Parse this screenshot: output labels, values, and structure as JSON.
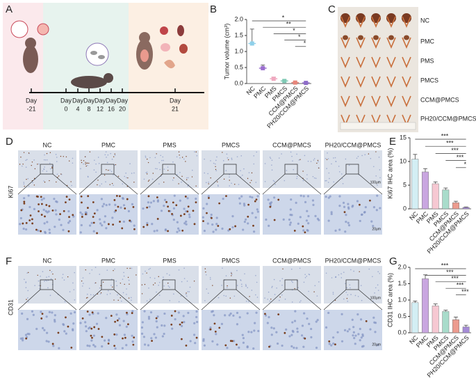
{
  "panel_labels": [
    "A",
    "B",
    "C",
    "D",
    "E",
    "F",
    "G"
  ],
  "timeline": {
    "days": [
      {
        "label": "Day",
        "num": -21
      },
      {
        "label": "Day",
        "num": 0
      },
      {
        "label": "Day",
        "num": 4
      },
      {
        "label": "Day",
        "num": 8
      },
      {
        "label": "Day",
        "num": 12
      },
      {
        "label": "Day",
        "num": 16
      },
      {
        "label": "Day",
        "num": 20
      },
      {
        "label": "Day",
        "num": 21
      }
    ]
  },
  "chart_data": [
    {
      "type": "dot",
      "ylabel": "Tumor volume (cm³)",
      "categories": [
        "NC",
        "PMC",
        "PMS",
        "PMCS",
        "CCM@PMCS",
        "PH20/CCM@PMCS"
      ],
      "values": [
        1.25,
        0.48,
        0.15,
        0.08,
        0.03,
        0.02
      ],
      "errors": [
        0.45,
        0.1,
        0.05,
        0.03,
        0.02,
        0.01
      ],
      "colors": [
        "#8fd0ea",
        "#9b6fcf",
        "#f0a9c0",
        "#7fcab5",
        "#e8857a",
        "#8e6cc9"
      ],
      "ylim": [
        0,
        2
      ],
      "yticks": [
        {
          "value": 0,
          "label": "0.0"
        },
        0.5,
        {
          "value": 1,
          "label": "1.0"
        },
        1.5,
        {
          "value": 2,
          "label": "2.0"
        }
      ],
      "significance": [
        "*",
        "**",
        "*",
        "*",
        "*"
      ],
      "grid": false
    },
    {
      "type": "bar",
      "ylabel": "Ki67 IHC area (%)",
      "categories": [
        "NC",
        "PMC",
        "PMS",
        "PMCS",
        "CCM@PMCS",
        "PH20/CCM@PMCS"
      ],
      "values": [
        10.5,
        7.8,
        5.3,
        4.0,
        1.3,
        0.3
      ],
      "errors": [
        1.0,
        0.7,
        0.4,
        0.4,
        0.3,
        0.1
      ],
      "colors": [
        "#d3eef4",
        "#c9a6e0",
        "#f6c8d2",
        "#a9dccb",
        "#ec9b8e",
        "#a58bd6"
      ],
      "ylim": [
        0,
        15
      ],
      "yticks": [
        0,
        5,
        10,
        15
      ],
      "significance": [
        "***",
        "***",
        "***",
        "***",
        "*"
      ],
      "grid": false
    },
    {
      "type": "bar",
      "ylabel": "CD31 IHC area (%)",
      "categories": [
        "NC",
        "PMC",
        "PMS",
        "PMCS",
        "CCM@PMCS",
        "PH20/CCM@PMCS"
      ],
      "values": [
        0.92,
        1.65,
        0.82,
        0.65,
        0.4,
        0.18
      ],
      "errors": [
        0.05,
        0.12,
        0.06,
        0.04,
        0.08,
        0.05
      ],
      "colors": [
        "#d3eef4",
        "#c9a6e0",
        "#f6c8d2",
        "#a9dccb",
        "#ec9b8e",
        "#a58bd6"
      ],
      "ylim": [
        0,
        2
      ],
      "yticks": [
        {
          "value": 0,
          "label": "0.0"
        },
        0.5,
        {
          "value": 1,
          "label": "1.0"
        },
        1.5,
        {
          "value": 2,
          "label": "2.0"
        }
      ],
      "significance": [
        "***",
        "***",
        "***",
        "***",
        "***"
      ],
      "grid": false
    }
  ],
  "photo": {
    "labels": [
      "NC",
      "PMC",
      "PMS",
      "PMCS",
      "CCM@PMCS",
      "PH20/CCM@PMCS"
    ]
  },
  "ihc": [
    {
      "marker": "Ki67",
      "columns": [
        "NC",
        "PMC",
        "PMS",
        "PMCS",
        "CCM@PMCS",
        "PH20/CCM@PMCS"
      ],
      "scale_bars": [
        "100μm",
        "20μm"
      ]
    },
    {
      "marker": "CD31",
      "columns": [
        "NC",
        "PMC",
        "PMS",
        "PMCS",
        "CCM@PMCS",
        "PH20/CCM@PMCS"
      ],
      "scale_bars": [
        "100μm",
        "20μm"
      ]
    }
  ]
}
